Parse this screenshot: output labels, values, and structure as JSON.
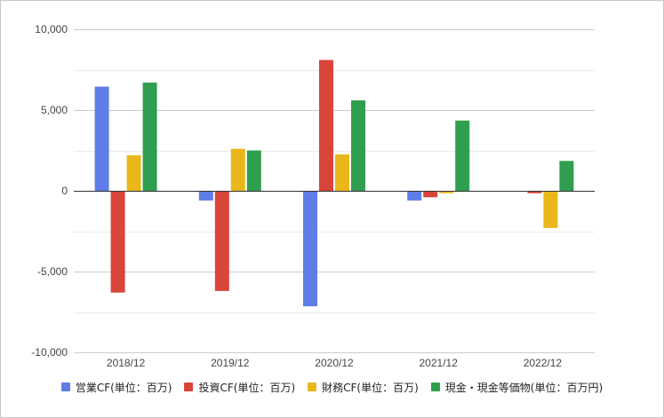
{
  "chart_data": {
    "type": "bar",
    "categories": [
      "2018/12",
      "2019/12",
      "2020/12",
      "2021/12",
      "2022/12"
    ],
    "series": [
      {
        "name": "営業CF(単位：百万)",
        "color": "#5f7de8",
        "values": [
          6450,
          -600,
          -7150,
          -600,
          -50
        ]
      },
      {
        "name": "投資CF(単位：百万)",
        "color": "#d8453a",
        "values": [
          -6300,
          -6200,
          8100,
          -400,
          -150
        ]
      },
      {
        "name": "財務CF(単位：百万)",
        "color": "#eab71a",
        "values": [
          2200,
          2600,
          2250,
          -150,
          -2300
        ]
      },
      {
        "name": "現金・現金等価物(単位：百万円)",
        "color": "#2f9e4f",
        "values": [
          6700,
          2500,
          5600,
          4350,
          1850
        ]
      }
    ],
    "yticks": [
      "10,000",
      "5,000",
      "0",
      "-5,000",
      "-10,000"
    ],
    "ylim": [
      -10000,
      10000
    ],
    "grid": true,
    "legend_position": "bottom"
  }
}
